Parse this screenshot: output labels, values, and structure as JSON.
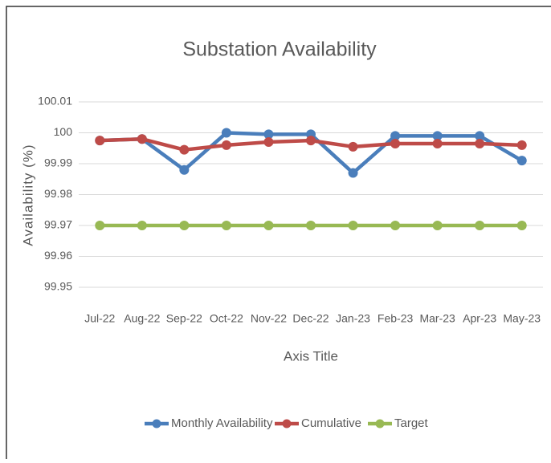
{
  "chart_data": {
    "type": "line",
    "title": "Substation Availability",
    "x_label": "Axis Title",
    "y_label": "Availability (%)",
    "categories": [
      "Jul-22",
      "Aug-22",
      "Sep-22",
      "Oct-22",
      "Nov-22",
      "Dec-22",
      "Jan-23",
      "Feb-23",
      "Mar-23",
      "Apr-23",
      "May-23"
    ],
    "series": [
      {
        "name": "Monthly Availability",
        "color": "#4a7ebb",
        "values": [
          99.9975,
          99.998,
          99.988,
          100.0,
          99.9995,
          99.9995,
          99.987,
          99.999,
          99.999,
          99.999,
          99.991
        ]
      },
      {
        "name": "Cumulative",
        "color": "#be4b48",
        "values": [
          99.9975,
          99.998,
          99.9945,
          99.996,
          99.997,
          99.9975,
          99.9955,
          99.9965,
          99.9965,
          99.9965,
          99.996
        ]
      },
      {
        "name": "Target",
        "color": "#98b954",
        "values": [
          99.97,
          99.97,
          99.97,
          99.97,
          99.97,
          99.97,
          99.97,
          99.97,
          99.97,
          99.97,
          99.97
        ]
      }
    ],
    "ylim": [
      99.95,
      100.01
    ],
    "yticks": [
      99.95,
      99.96,
      99.97,
      99.98,
      99.99,
      100,
      100.01
    ],
    "grid": true,
    "legend": "bottom"
  }
}
